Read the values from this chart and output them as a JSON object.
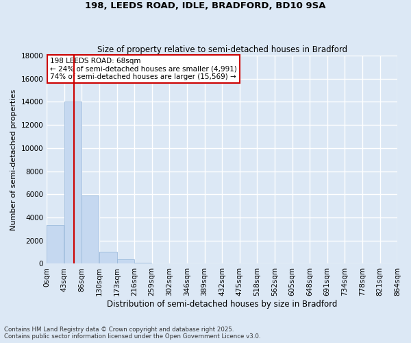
{
  "title1": "198, LEEDS ROAD, IDLE, BRADFORD, BD10 9SA",
  "title2": "Size of property relative to semi-detached houses in Bradford",
  "xlabel": "Distribution of semi-detached houses by size in Bradford",
  "ylabel": "Number of semi-detached properties",
  "annotation_line1": "198 LEEDS ROAD: 68sqm",
  "annotation_line2": "← 24% of semi-detached houses are smaller (4,991)",
  "annotation_line3": "74% of semi-detached houses are larger (15,569) →",
  "bin_edges": [
    0,
    43,
    86,
    130,
    173,
    216,
    259,
    302,
    346,
    389,
    432,
    475,
    518,
    562,
    605,
    648,
    691,
    734,
    778,
    821,
    864
  ],
  "bin_counts": [
    3370,
    14000,
    5900,
    1050,
    380,
    110,
    35,
    8,
    5,
    3,
    2,
    1,
    1,
    1,
    0,
    0,
    0,
    0,
    0,
    0
  ],
  "bar_color": "#c5d8f0",
  "bar_edgecolor": "#92b4d8",
  "vline_x": 68,
  "vline_color": "#cc0000",
  "background_color": "#dce8f5",
  "grid_color": "#ffffff",
  "annotation_box_color": "#ffffff",
  "annotation_box_edge": "#cc0000",
  "ylim": [
    0,
    18000
  ],
  "yticks": [
    0,
    2000,
    4000,
    6000,
    8000,
    10000,
    12000,
    14000,
    16000,
    18000
  ],
  "footer1": "Contains HM Land Registry data © Crown copyright and database right 2025.",
  "footer2": "Contains public sector information licensed under the Open Government Licence v3.0."
}
